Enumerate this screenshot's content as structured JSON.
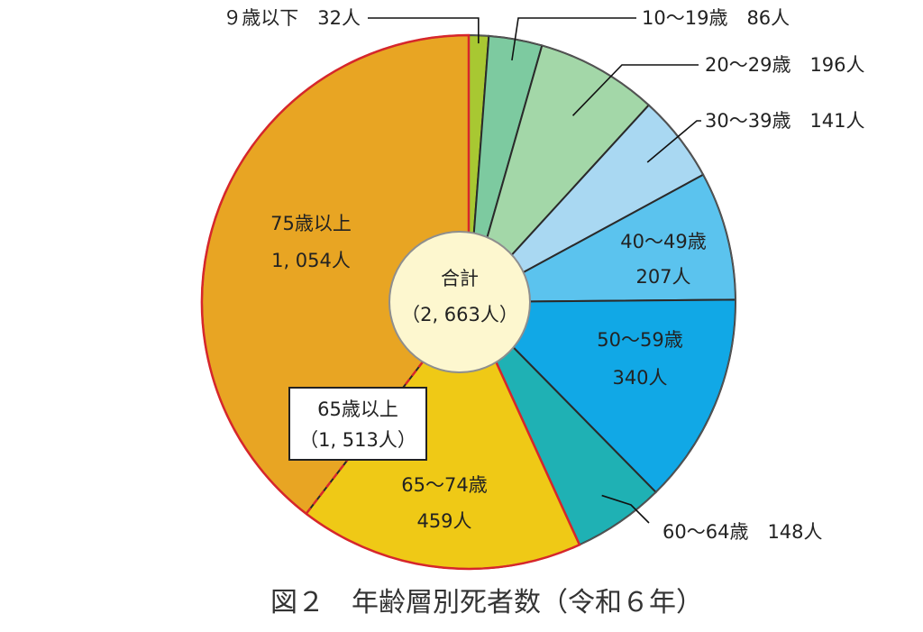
{
  "caption": "図２　年齢層別死者数（令和６年）",
  "center": {
    "title": "合計",
    "total": "（2, 663人）"
  },
  "bracket": {
    "line1": "65歳以上",
    "line2": "（1, 513人）"
  },
  "chart_data": {
    "type": "pie",
    "title": "図２　年齢層別死者数（令和６年）",
    "total": 2663,
    "slices": [
      {
        "id": "age-0-9",
        "label": "９歳以下",
        "value": 32,
        "value_text": "32人",
        "color": "#a8c832",
        "label_text": "９歳以下　32人"
      },
      {
        "id": "age-10-19",
        "label": "10～19歳",
        "value": 86,
        "value_text": "86人",
        "color": "#7dcaa0",
        "label_text": "10～19歳　86人"
      },
      {
        "id": "age-20-29",
        "label": "20～29歳",
        "value": 196,
        "value_text": "196人",
        "color": "#a3d7a8",
        "label_text": "20～29歳　196人"
      },
      {
        "id": "age-30-39",
        "label": "30～39歳",
        "value": 141,
        "value_text": "141人",
        "color": "#a9d8f2",
        "label_text": "30～39歳　141人"
      },
      {
        "id": "age-40-49",
        "label": "40～49歳",
        "value": 207,
        "value_text": "207人",
        "color": "#5bc3ee",
        "label_text": "40～49歳"
      },
      {
        "id": "age-50-59",
        "label": "50～59歳",
        "value": 340,
        "value_text": "340人",
        "color": "#11a8e6",
        "label_text": "50～59歳"
      },
      {
        "id": "age-60-64",
        "label": "60～64歳",
        "value": 148,
        "value_text": "148人",
        "color": "#1fb1b4",
        "label_text": "60～64歳　148人"
      },
      {
        "id": "age-65-74",
        "label": "65～74歳",
        "value": 459,
        "value_text": "459人",
        "color": "#efc916",
        "label_text": "65～74歳"
      },
      {
        "id": "age-75-up",
        "label": "75歳以上",
        "value": 1054,
        "value_text": "1, 054人",
        "color": "#e8a523",
        "label_text": "75歳以上"
      }
    ],
    "group": {
      "label": "65歳以上",
      "value": 1513
    }
  }
}
